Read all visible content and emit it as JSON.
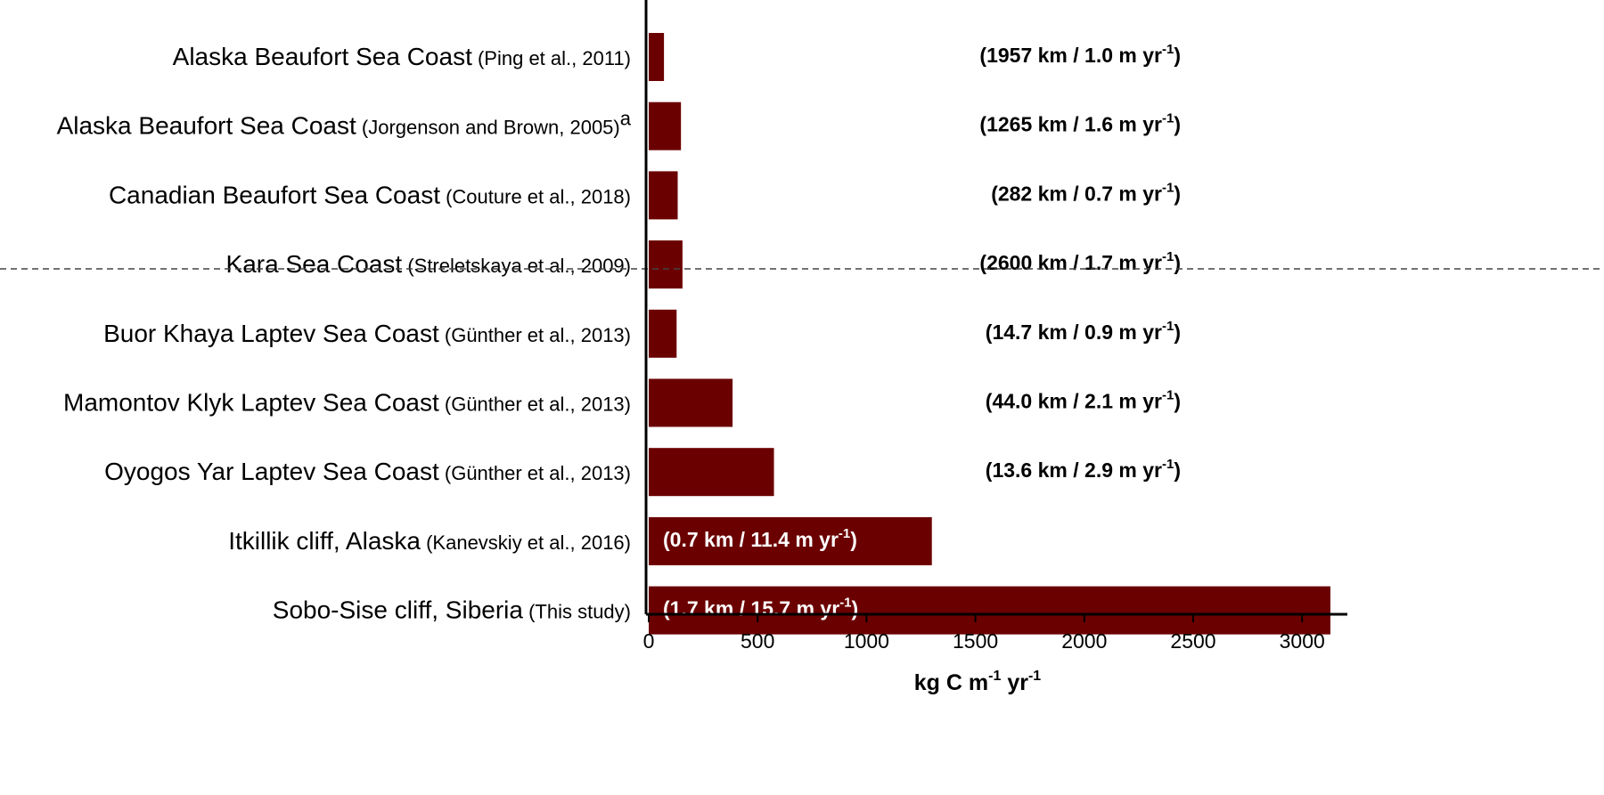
{
  "chart_data": {
    "type": "bar",
    "orientation": "horizontal",
    "bar_color": "#6b0000",
    "xlabel": {
      "main": "kg C m",
      "sup1": "-1",
      "mid": " yr",
      "sup2": "-1"
    },
    "xlim": [
      0,
      3200
    ],
    "xticks": [
      "0",
      "500",
      "1000",
      "1500",
      "2000",
      "2500",
      "3000"
    ],
    "divider_after_index": 3,
    "categories": [
      {
        "main": "Alaska Beaufort Sea Coast",
        "cite": "(Ping et al., 2011)",
        "cite_sup": "",
        "value": 70,
        "ann": {
          "text": "(1957 km / 1.0 m yr",
          "sup": "-1",
          "close": ")",
          "inside": false
        }
      },
      {
        "main": "Alaska Beaufort Sea Coast",
        "cite": "(Jorgenson and Brown, 2005)",
        "cite_sup": "a",
        "value": 148,
        "ann": {
          "text": "(1265 km / 1.6 m yr",
          "sup": "-1",
          "close": ")",
          "inside": false
        }
      },
      {
        "main": "Canadian Beaufort Sea Coast",
        "cite": "(Couture et al., 2018)",
        "cite_sup": "",
        "value": 133,
        "ann": {
          "text": "(282 km / 0.7 m yr",
          "sup": "-1",
          "close": ")",
          "inside": false
        }
      },
      {
        "main": "Kara Sea Coast",
        "cite": "(Streletskaya et al., 2009)",
        "cite_sup": "",
        "value": 155,
        "ann": {
          "text": "(2600 km / 1.7 m yr",
          "sup": "-1",
          "close": ")",
          "inside": false
        }
      },
      {
        "main": "Buor Khaya Laptev Sea Coast",
        "cite": "(Günther et al., 2013)",
        "cite_sup": "",
        "value": 128,
        "ann": {
          "text": "(14.7 km / 0.9 m yr",
          "sup": "-1",
          "close": ")",
          "inside": false
        }
      },
      {
        "main": "Mamontov Klyk Laptev Sea Coast",
        "cite": "(Günther et al., 2013)",
        "cite_sup": "",
        "value": 385,
        "ann": {
          "text": "(44.0 km / 2.1 m yr",
          "sup": "-1",
          "close": ")",
          "inside": false
        }
      },
      {
        "main": "Oyogos Yar Laptev Sea Coast",
        "cite": "(Günther et al., 2013)",
        "cite_sup": "",
        "value": 575,
        "ann": {
          "text": "(13.6 km / 2.9 m yr",
          "sup": "-1",
          "close": ")",
          "inside": false
        }
      },
      {
        "main": "Itkillik cliff, Alaska",
        "cite": "(Kanevskiy et al., 2016)",
        "cite_sup": "",
        "value": 1300,
        "ann": {
          "text": "(0.7 km / 11.4 m yr",
          "sup": "-1",
          "close": ")",
          "inside": true
        }
      },
      {
        "main": "Sobo-Sise cliff, Siberia",
        "cite": "(This study)",
        "cite_sup": "",
        "value": 3130,
        "ann": {
          "text": "(1.7 km / 15.7 m yr",
          "sup": "-1",
          "close": ")",
          "inside": true
        }
      }
    ]
  }
}
